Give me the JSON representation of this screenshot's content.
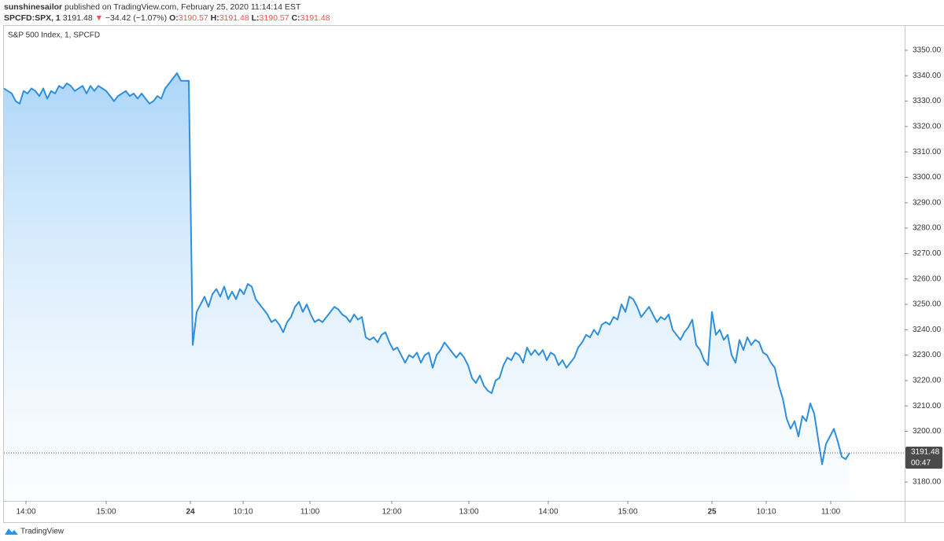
{
  "header": {
    "publisher": "sunshinesailor",
    "published_text": "published on TradingView.com, February 25, 2020 11:14:14 EST",
    "symbol": "SPCFD:SPX, 1",
    "last": "3191.48",
    "arrow": "▼",
    "change": "−34.42 (−1.07%)",
    "o_label": "O:",
    "o_value": "3190.57",
    "h_label": "H:",
    "h_value": "3191.48",
    "l_label": "L:",
    "l_value": "3190.57",
    "c_label": "C:",
    "c_value": "3191.48"
  },
  "footer": {
    "brand": "TradingView"
  },
  "chart_data": {
    "type": "area",
    "title": "S&P 500 Index, 1, SPCFD",
    "color": "#2f8fdc",
    "grid": false,
    "values": [
      3335,
      3334,
      3333,
      3330,
      3329,
      3334,
      3333,
      3335,
      3334,
      3332,
      3335,
      3331,
      3334,
      3333,
      3336,
      3335,
      3337,
      3336,
      3334,
      3335,
      3336,
      3333,
      3336,
      3334,
      3336,
      3335,
      3334,
      3332,
      3330,
      3332,
      3333,
      3334,
      3332,
      3333,
      3331,
      3333,
      3331,
      3329,
      3330,
      3332,
      3331,
      3335,
      3337,
      3339,
      3341,
      3338,
      3338,
      3338,
      3234,
      3247,
      3250,
      3253,
      3249,
      3254,
      3256,
      3253,
      3257,
      3252,
      3255,
      3252,
      3256,
      3254,
      3258,
      3257,
      3252,
      3250,
      3248,
      3246,
      3243,
      3244,
      3242,
      3239,
      3243,
      3245,
      3249,
      3251,
      3247,
      3250,
      3246,
      3243,
      3244,
      3243,
      3245,
      3247,
      3249,
      3248,
      3246,
      3245,
      3243,
      3246,
      3244,
      3245,
      3237,
      3236,
      3237,
      3235,
      3238,
      3239,
      3235,
      3232,
      3233,
      3230,
      3227,
      3230,
      3229,
      3231,
      3227,
      3230,
      3231,
      3225,
      3230,
      3232,
      3235,
      3233,
      3231,
      3229,
      3231,
      3229,
      3226,
      3221,
      3219,
      3222,
      3218,
      3216,
      3215,
      3220,
      3221,
      3226,
      3229,
      3228,
      3231,
      3230,
      3227,
      3233,
      3230,
      3232,
      3230,
      3232,
      3228,
      3231,
      3230,
      3226,
      3228,
      3225,
      3227,
      3229,
      3233,
      3235,
      3238,
      3237,
      3240,
      3238,
      3242,
      3243,
      3242,
      3245,
      3244,
      3250,
      3247,
      3253,
      3252,
      3249,
      3245,
      3247,
      3249,
      3246,
      3243,
      3245,
      3244,
      3246,
      3240,
      3238,
      3236,
      3239,
      3241,
      3244,
      3234,
      3232,
      3228,
      3226,
      3247,
      3238,
      3240,
      3236,
      3238,
      3230,
      3227,
      3236,
      3232,
      3237,
      3234,
      3236,
      3235,
      3231,
      3230,
      3227,
      3225,
      3218,
      3213,
      3205,
      3201,
      3204,
      3198,
      3206,
      3204,
      3211,
      3207,
      3197,
      3187,
      3195,
      3198,
      3201,
      3196,
      3190,
      3189,
      3191.48
    ],
    "ylim": [
      3172.6,
      3359.9
    ],
    "yticks": [
      {
        "value": 3180,
        "label": "3180.00"
      },
      {
        "value": 3200,
        "label": "3200.00"
      },
      {
        "value": 3210,
        "label": "3210.00"
      },
      {
        "value": 3220,
        "label": "3220.00"
      },
      {
        "value": 3230,
        "label": "3230.00"
      },
      {
        "value": 3240,
        "label": "3240.00"
      },
      {
        "value": 3250,
        "label": "3250.00"
      },
      {
        "value": 3260,
        "label": "3260.00"
      },
      {
        "value": 3270,
        "label": "3270.00"
      },
      {
        "value": 3280,
        "label": "3280.00"
      },
      {
        "value": 3290,
        "label": "3290.00"
      },
      {
        "value": 3300,
        "label": "3300.00"
      },
      {
        "value": 3310,
        "label": "3310.00"
      },
      {
        "value": 3320,
        "label": "3320.00"
      },
      {
        "value": 3330,
        "label": "3330.00"
      },
      {
        "value": 3340,
        "label": "3340.00"
      },
      {
        "value": 3350,
        "label": "3350.00"
      }
    ],
    "xlim": [
      0,
      229
    ],
    "xticks": [
      {
        "value": 5.6,
        "label": "14:00"
      },
      {
        "value": 26,
        "label": "15:00"
      },
      {
        "value": 47.4,
        "label": "24"
      },
      {
        "value": 60.8,
        "label": "10:10"
      },
      {
        "value": 77.8,
        "label": "11:00"
      },
      {
        "value": 98.6,
        "label": "12:00"
      },
      {
        "value": 118.2,
        "label": "13:00"
      },
      {
        "value": 138.4,
        "label": "14:00"
      },
      {
        "value": 158.6,
        "label": "15:00"
      },
      {
        "value": 180,
        "label": "25"
      },
      {
        "value": 193.8,
        "label": "10:10"
      },
      {
        "value": 210.2,
        "label": "11:00"
      }
    ],
    "price_label": "3191.48",
    "countdown": "00:47"
  }
}
